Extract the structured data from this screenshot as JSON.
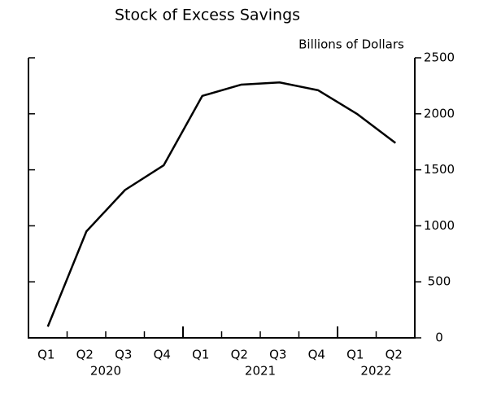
{
  "chart_data": {
    "type": "line",
    "title": "Stock of Excess Savings",
    "y_axis_label": "Billions of Dollars",
    "categories": [
      "Q1",
      "Q2",
      "Q3",
      "Q4",
      "Q1",
      "Q2",
      "Q3",
      "Q4",
      "Q1",
      "Q2"
    ],
    "x_groups": [
      {
        "label": "2020",
        "size": 4
      },
      {
        "label": "2021",
        "size": 4
      },
      {
        "label": "2022",
        "size": 2
      }
    ],
    "series": [
      {
        "name": "Stock of Excess Savings",
        "color": "#000000",
        "values": [
          100,
          950,
          1320,
          1540,
          2160,
          2260,
          2280,
          2210,
          2000,
          1740
        ]
      }
    ],
    "ylim": [
      0,
      2500
    ],
    "yticks": [
      0,
      500,
      1000,
      1500,
      2000,
      2500
    ],
    "y_axis_side": "right",
    "grid": false
  }
}
